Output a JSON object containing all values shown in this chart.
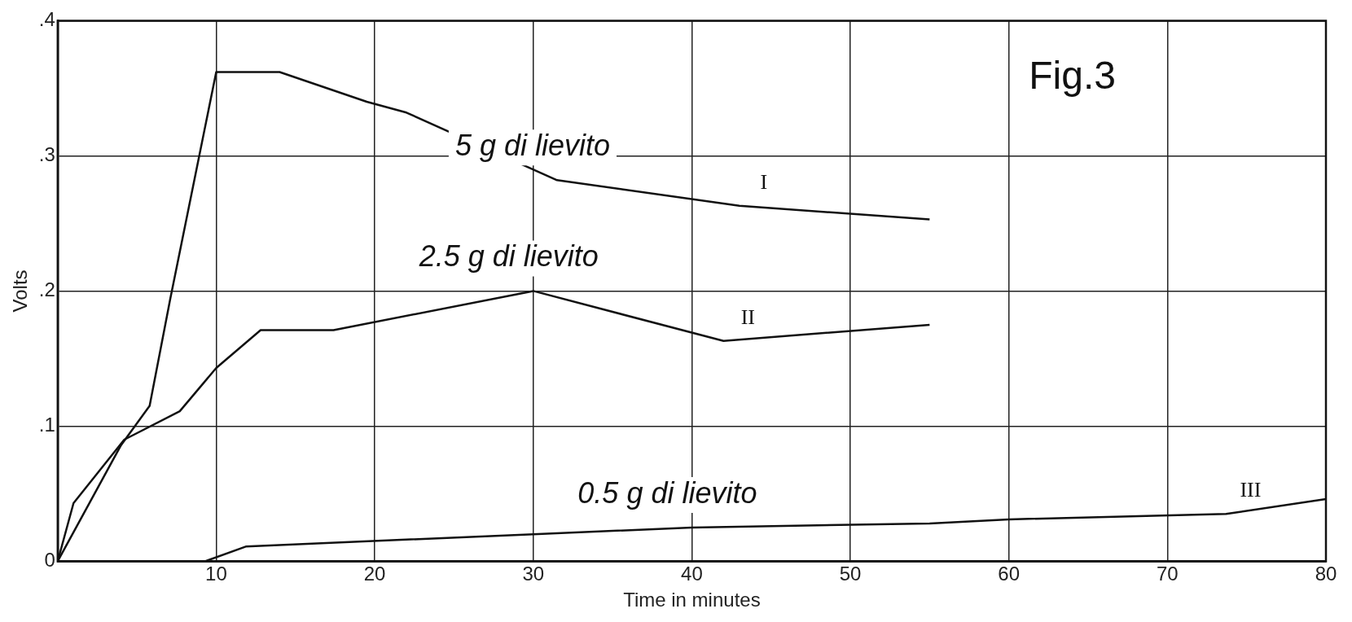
{
  "chart_data": {
    "type": "line",
    "title": "Fig.3",
    "xlabel": "Time in minutes",
    "ylabel": "Volts",
    "xlim": [
      0,
      80
    ],
    "xticks": [
      {
        "value": 0,
        "label": null
      },
      10,
      20,
      30,
      40,
      50,
      60,
      70,
      80
    ],
    "ylim": [
      0,
      0.4
    ],
    "yticks": [
      {
        "value": 0,
        "label": "0"
      },
      {
        "value": 0.1,
        "label": ".1"
      },
      {
        "value": 0.2,
        "label": ".2"
      },
      {
        "value": 0.3,
        "label": ".3"
      },
      {
        "value": 0.4,
        "label": ".4"
      }
    ],
    "grid": true,
    "legend": false,
    "marker": "none",
    "line_style": "solid",
    "series": [
      {
        "name": "5 g di lievito",
        "color": "#111111",
        "x": [
          0,
          4,
          5.8,
          7.1,
          10,
          14,
          19.5,
          22,
          31.5,
          43,
          55
        ],
        "values": [
          0,
          0.086,
          0.115,
          0.194,
          0.362,
          0.362,
          0.34,
          0.332,
          0.282,
          0.263,
          0.253
        ]
      },
      {
        "name": "2.5 g di lievito",
        "color": "#111111",
        "x": [
          0,
          1,
          4.2,
          7.7,
          10,
          12.8,
          17.4,
          30,
          42,
          55
        ],
        "values": [
          0,
          0.043,
          0.09,
          0.111,
          0.143,
          0.171,
          0.171,
          0.2,
          0.163,
          0.175
        ]
      },
      {
        "name": "0.5 g di lievito",
        "color": "#111111",
        "x": [
          9.3,
          11.9,
          30,
          40,
          55,
          60,
          73.7,
          80
        ],
        "values": [
          0,
          0.011,
          0.02,
          0.025,
          0.028,
          0.031,
          0.035,
          0.046
        ]
      }
    ],
    "annotations": [
      "I",
      "II",
      "III"
    ]
  }
}
